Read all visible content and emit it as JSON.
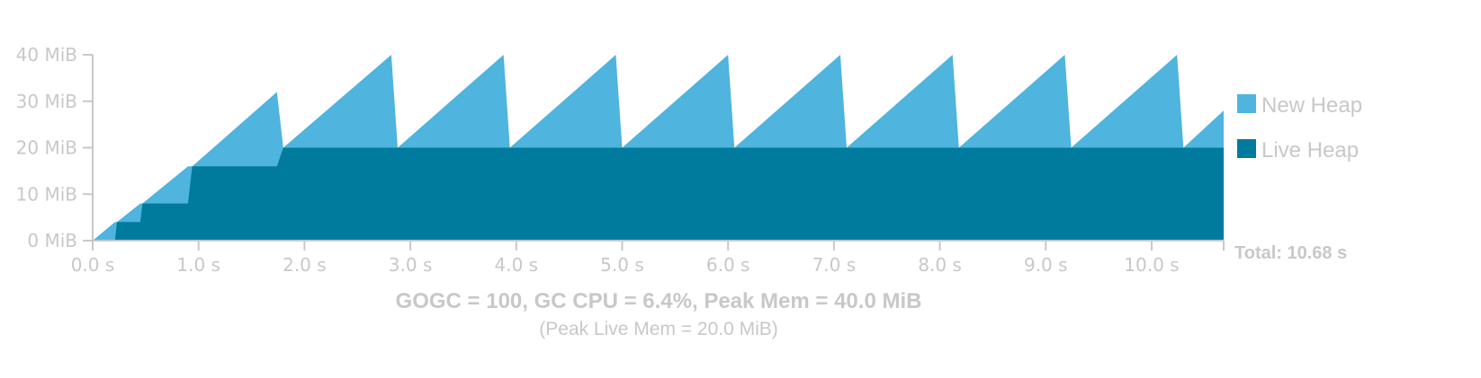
{
  "chart_data": {
    "type": "area",
    "x_unit": "s",
    "y_unit": "MiB",
    "xlim": [
      0,
      10.68
    ],
    "ylim": [
      0,
      40
    ],
    "x_ticks": [
      0,
      1,
      2,
      3,
      4,
      5,
      6,
      7,
      8,
      9,
      10
    ],
    "x_tick_labels": [
      "0.0 s",
      "1.0 s",
      "2.0 s",
      "3.0 s",
      "4.0 s",
      "5.0 s",
      "6.0 s",
      "7.0 s",
      "8.0 s",
      "9.0 s",
      "10.0 s"
    ],
    "y_ticks": [
      0,
      10,
      20,
      30,
      40
    ],
    "y_tick_labels": [
      "0 MiB",
      "10 MiB",
      "20 MiB",
      "30 MiB",
      "40 MiB"
    ],
    "grid": false,
    "legend_position": "right",
    "series": [
      {
        "name": "New Heap",
        "color": "#4fb4de",
        "x": [
          0,
          0.21,
          0.23,
          0.45,
          0.47,
          0.9,
          0.94,
          1.74,
          1.8,
          2.82,
          2.88,
          3.88,
          3.94,
          4.94,
          5.0,
          6.0,
          6.06,
          7.06,
          7.12,
          8.12,
          8.18,
          9.18,
          9.24,
          10.24,
          10.3,
          10.68
        ],
        "y": [
          0,
          4,
          4,
          8,
          8,
          16,
          16,
          32,
          20,
          40,
          20,
          40,
          20,
          40,
          20,
          40,
          20,
          40,
          20,
          40,
          20,
          40,
          20,
          40,
          20,
          28
        ]
      },
      {
        "name": "Live Heap",
        "color": "#007b9e",
        "x": [
          0,
          0.21,
          0.23,
          0.45,
          0.47,
          0.9,
          0.94,
          1.74,
          1.8,
          10.68
        ],
        "y": [
          0,
          0,
          4,
          4,
          8,
          8,
          16,
          16,
          20,
          20
        ]
      }
    ],
    "total_label": "Total: 10.68 s",
    "summary": "GOGC = 100, GC CPU = 6.4%, Peak Mem = 40.0 MiB",
    "subsummary": "(Peak Live Mem = 20.0 MiB)"
  }
}
